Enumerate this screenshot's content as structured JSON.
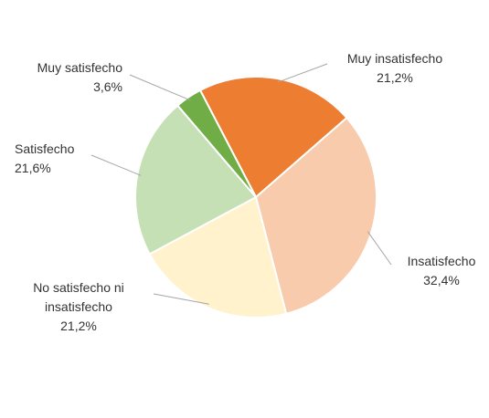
{
  "chart_data": {
    "type": "pie",
    "title": "",
    "categories": [
      "Muy insatisfecho",
      "Insatisfecho",
      "No satisfecho ni insatisfecho",
      "Satisfecho",
      "Muy satisfecho"
    ],
    "values": [
      21.2,
      32.4,
      21.2,
      21.6,
      3.6
    ],
    "value_labels": [
      "21,2%",
      "32,4%",
      "21,2%",
      "21,6%",
      "3,6%"
    ],
    "label_lines": [
      [
        "Muy insatisfecho"
      ],
      [
        "Insatisfecho"
      ],
      [
        "No satisfecho ni",
        "insatisfecho"
      ],
      [
        "Satisfecho"
      ],
      [
        "Muy satisfecho"
      ]
    ],
    "colors": [
      "#ED7D31",
      "#F8CBAD",
      "#FFF2CC",
      "#C5E0B4",
      "#70AD47"
    ],
    "start_angle_deg": 0,
    "direction": "clockwise",
    "legend": "none",
    "data_labels": "outside with leader lines"
  }
}
